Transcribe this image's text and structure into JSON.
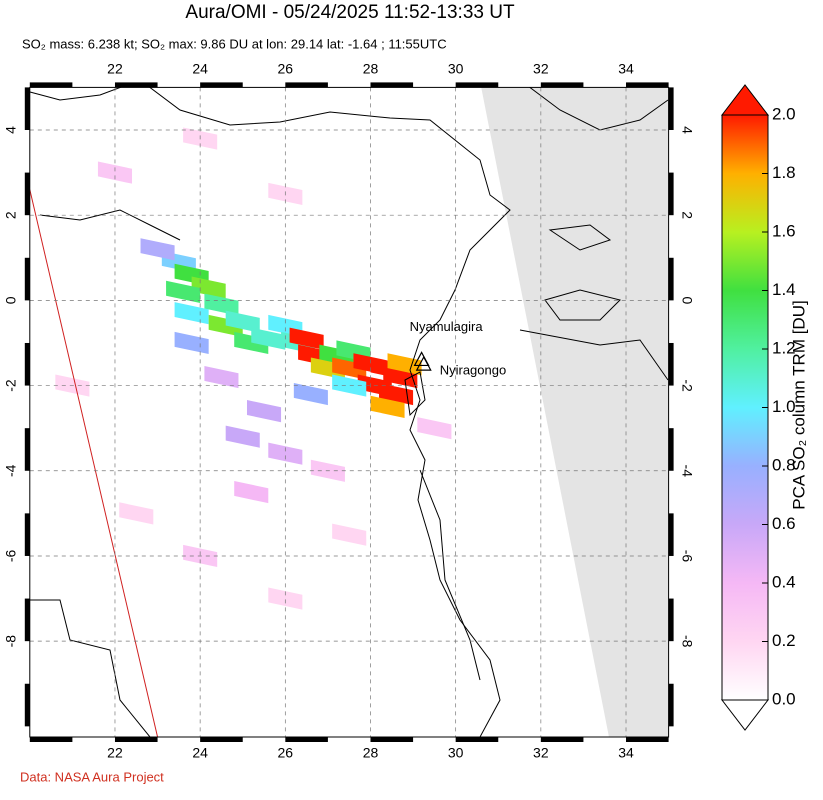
{
  "header": {
    "title": "Aura/OMI - 05/24/2025 11:52-13:33 UT",
    "subtitle": "SO₂ mass: 6.238 kt; SO₂ max: 9.86 DU at lon: 29.14 lat: -1.64 ; 11:55UTC"
  },
  "map": {
    "xlim": [
      20,
      35
    ],
    "ylim": [
      -10.25,
      5
    ],
    "xticks": [
      22,
      24,
      26,
      28,
      30,
      32,
      34
    ],
    "yticks": [
      4,
      2,
      0,
      -2,
      -4,
      -6,
      -8
    ],
    "grid": true,
    "volcanoes": [
      {
        "name": "Nyamulagira",
        "lon": 29.2,
        "lat": -1.41
      },
      {
        "name": "Nyiragongo",
        "lon": 29.25,
        "lat": -1.52
      }
    ],
    "cells": [
      [
        23.5,
        0.9,
        0.9
      ],
      [
        23.8,
        0.6,
        1.4
      ],
      [
        24.2,
        0.3,
        1.5
      ],
      [
        23.6,
        0.2,
        1.3
      ],
      [
        23.8,
        -0.3,
        1.0
      ],
      [
        24.5,
        -0.1,
        1.2
      ],
      [
        24.6,
        -0.6,
        1.5
      ],
      [
        25.0,
        -0.5,
        1.1
      ],
      [
        23.8,
        -1.0,
        0.8
      ],
      [
        25.2,
        -1.0,
        1.3
      ],
      [
        25.6,
        -0.9,
        1.1
      ],
      [
        26.0,
        -0.6,
        1.0
      ],
      [
        26.3,
        -1.0,
        1.1
      ],
      [
        26.5,
        -0.9,
        2.0
      ],
      [
        26.7,
        -1.3,
        2.0
      ],
      [
        27.2,
        -1.3,
        1.4
      ],
      [
        27.6,
        -1.2,
        1.3
      ],
      [
        27.0,
        -1.6,
        1.7
      ],
      [
        27.5,
        -1.6,
        1.9
      ],
      [
        28.0,
        -1.5,
        2.0
      ],
      [
        28.4,
        -1.6,
        2.0
      ],
      [
        28.7,
        -1.8,
        2.0
      ],
      [
        28.1,
        -2.0,
        2.0
      ],
      [
        28.6,
        -2.2,
        2.0
      ],
      [
        28.4,
        -2.5,
        1.8
      ],
      [
        28.8,
        -1.5,
        1.8
      ],
      [
        27.5,
        -2.0,
        1.0
      ],
      [
        26.6,
        -2.2,
        0.8
      ],
      [
        25.5,
        -2.6,
        0.6
      ],
      [
        25.0,
        -3.2,
        0.6
      ],
      [
        24.5,
        -1.8,
        0.5
      ],
      [
        26.0,
        -3.6,
        0.5
      ],
      [
        23.0,
        1.2,
        0.7
      ],
      [
        25.2,
        -4.5,
        0.4
      ],
      [
        27.0,
        -4.0,
        0.3
      ],
      [
        22.0,
        3.0,
        0.3
      ],
      [
        24.0,
        -6,
        0.3
      ],
      [
        26.0,
        -7,
        0.2
      ],
      [
        22.5,
        -5,
        0.2
      ],
      [
        29.5,
        -3,
        0.3
      ],
      [
        27.5,
        -5.5,
        0.2
      ],
      [
        24,
        3.8,
        0.2
      ],
      [
        26,
        2.5,
        0.2
      ],
      [
        21,
        -2,
        0.2
      ]
    ]
  },
  "colorbar": {
    "label": "PCA SO₂ column TRM [DU]",
    "lim": [
      0,
      2
    ],
    "ticks": [
      {
        "value": 0,
        "label": "0.0"
      },
      {
        "value": 0.2,
        "label": "0.2"
      },
      {
        "value": 0.4,
        "label": "0.4"
      },
      {
        "value": 0.6,
        "label": "0.6"
      },
      {
        "value": 0.8,
        "label": "0.8"
      },
      {
        "value": 1,
        "label": "1.0"
      },
      {
        "value": 1.2,
        "label": "1.2"
      },
      {
        "value": 1.4,
        "label": "1.4"
      },
      {
        "value": 1.6,
        "label": "1.6"
      },
      {
        "value": 1.8,
        "label": "1.8"
      },
      {
        "value": 2,
        "label": "2.0"
      }
    ],
    "colors": [
      "#ffffff",
      "#ffd6f2",
      "#f5b8f5",
      "#c8a8f8",
      "#98b0ff",
      "#60f0ff",
      "#50f0a0",
      "#40e040",
      "#b8f020",
      "#ffb000",
      "#ff1a00"
    ]
  },
  "footer": {
    "credit": "Data: NASA Aura Project"
  }
}
